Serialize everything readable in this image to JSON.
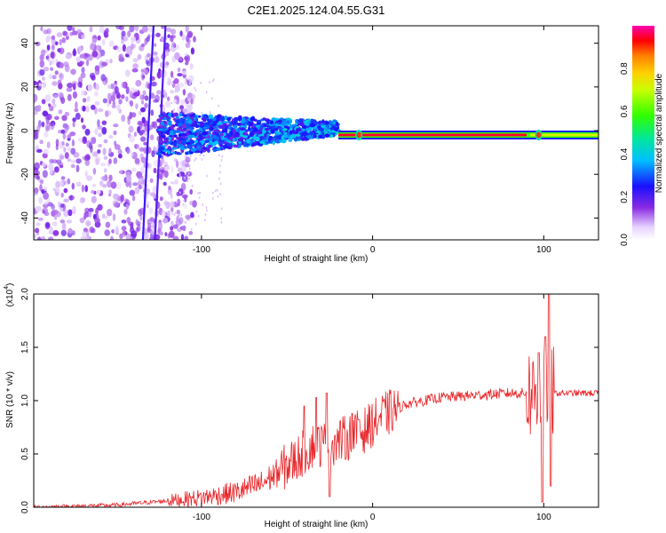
{
  "figure_title": "C2E1.2025.124.04.55.G31",
  "chart_data": [
    {
      "type": "heatmap",
      "title": "C2E1.2025.124.04.55.G31",
      "xlabel": "Height of straight line (km)",
      "ylabel": "Frequency (Hz)",
      "xlim": [
        -198,
        132
      ],
      "ylim": [
        -50,
        48
      ],
      "x_ticks": [
        -100,
        0,
        100
      ],
      "y_ticks": [
        -40,
        -20,
        0,
        20,
        40
      ],
      "colorbar": {
        "label": "Normalized spectral amplitude",
        "range": [
          0.0,
          1.0
        ],
        "ticks": [
          0.0,
          0.2,
          0.4,
          0.6,
          0.8
        ],
        "tick_labels": [
          "0.0",
          "0.2",
          "0.4",
          "0.6",
          "0.8"
        ]
      },
      "features": {
        "noise_region_x": [
          -198,
          -112
        ],
        "scintillation_region_x": [
          -125,
          -20
        ],
        "main_line_freq_hz": -2,
        "main_line_x": [
          -20,
          132
        ],
        "main_line_amplitude": 0.95,
        "bursts_x": [
          -8,
          97
        ]
      }
    },
    {
      "type": "line",
      "xlabel": "Height of straight line (km)",
      "ylabel": "SNR (10 * v/v)",
      "y_multiplier": "(x10",
      "y_exponent": "4",
      "xlim": [
        -198,
        132
      ],
      "ylim": [
        0.0,
        2.0
      ],
      "x_ticks": [
        -100,
        0,
        100
      ],
      "y_ticks": [
        "0.0",
        "0.5",
        "1.0",
        "1.5",
        "2.0"
      ],
      "color": "#e8262a",
      "trend": [
        {
          "x": -198,
          "y": 0.0
        },
        {
          "x": -150,
          "y": 0.02
        },
        {
          "x": -120,
          "y": 0.06
        },
        {
          "x": -100,
          "y": 0.09
        },
        {
          "x": -80,
          "y": 0.14
        },
        {
          "x": -65,
          "y": 0.22
        },
        {
          "x": -55,
          "y": 0.33
        },
        {
          "x": -45,
          "y": 0.45
        },
        {
          "x": -35,
          "y": 0.58
        },
        {
          "x": -25,
          "y": 0.6
        },
        {
          "x": -15,
          "y": 0.65
        },
        {
          "x": -5,
          "y": 0.72
        },
        {
          "x": 5,
          "y": 0.85
        },
        {
          "x": 20,
          "y": 0.97
        },
        {
          "x": 40,
          "y": 1.03
        },
        {
          "x": 60,
          "y": 1.05
        },
        {
          "x": 80,
          "y": 1.07
        },
        {
          "x": 100,
          "y": 1.07
        },
        {
          "x": 132,
          "y": 1.07
        }
      ],
      "spikes": [
        {
          "x": -40,
          "y": 0.95
        },
        {
          "x": -33,
          "y": 1.03
        },
        {
          "x": -27,
          "y": 1.07
        },
        {
          "x": -25,
          "y": 0.1
        },
        {
          "x": -12,
          "y": 0.88
        },
        {
          "x": -8,
          "y": 0.82
        },
        {
          "x": 97,
          "y": 1.45
        },
        {
          "x": 99,
          "y": 0.05
        },
        {
          "x": 101,
          "y": 1.6
        },
        {
          "x": 103,
          "y": 2.0
        },
        {
          "x": 104,
          "y": 0.2
        }
      ]
    }
  ]
}
